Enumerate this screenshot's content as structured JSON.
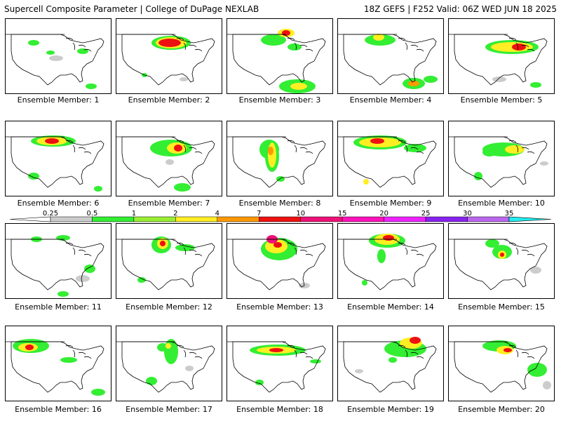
{
  "header": {
    "left": "Supercell Composite Parameter | College of DuPage NEXLAB",
    "right": "18Z GEFS | F252 Valid: 06Z WED JUN 18 2025"
  },
  "panels": [
    {
      "label": "Ensemble Member: 1"
    },
    {
      "label": "Ensemble Member: 2"
    },
    {
      "label": "Ensemble Member: 3"
    },
    {
      "label": "Ensemble Member: 4"
    },
    {
      "label": "Ensemble Member: 5"
    },
    {
      "label": "Ensemble Member: 6"
    },
    {
      "label": "Ensemble Member: 7"
    },
    {
      "label": "Ensemble Member: 8"
    },
    {
      "label": "Ensemble Member: 9"
    },
    {
      "label": "Ensemble Member: 10"
    },
    {
      "label": "Ensemble Member: 11"
    },
    {
      "label": "Ensemble Member: 12"
    },
    {
      "label": "Ensemble Member: 13"
    },
    {
      "label": "Ensemble Member: 14"
    },
    {
      "label": "Ensemble Member: 15"
    },
    {
      "label": "Ensemble Member: 16"
    },
    {
      "label": "Ensemble Member: 17"
    },
    {
      "label": "Ensemble Member: 18"
    },
    {
      "label": "Ensemble Member: 19"
    },
    {
      "label": "Ensemble Member: 20"
    }
  ],
  "colorbar": {
    "ticks": [
      "0.25",
      "0.5",
      "1",
      "2",
      "4",
      "7",
      "10",
      "15",
      "20",
      "25",
      "30",
      "35"
    ],
    "colors": [
      "#cccccc",
      "#33ee33",
      "#99ee33",
      "#ffee22",
      "#ff9900",
      "#ee1111",
      "#ee1177",
      "#ff11bb",
      "#ee22ff",
      "#8822ee",
      "#bb66ee",
      "#22eeee"
    ]
  }
}
